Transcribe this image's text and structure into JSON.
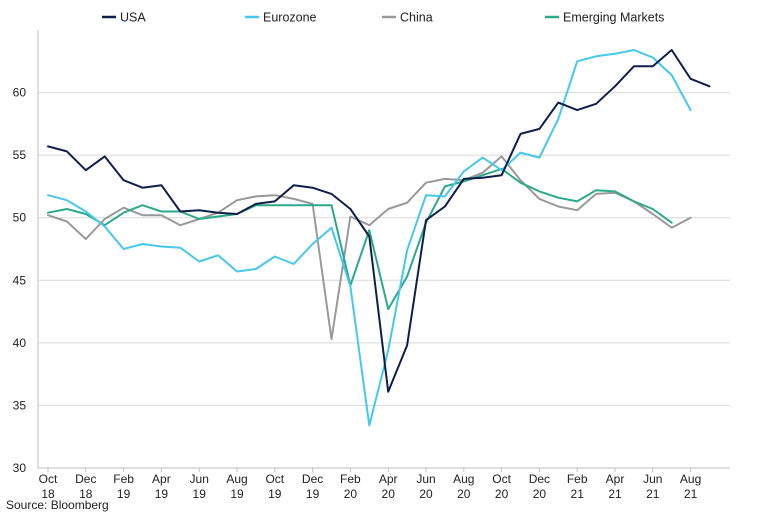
{
  "chart_data": {
    "type": "line",
    "x_ticks": [
      {
        "top": "Oct",
        "bottom": "18"
      },
      {
        "top": "Dec",
        "bottom": "18"
      },
      {
        "top": "Feb",
        "bottom": "19"
      },
      {
        "top": "Apr",
        "bottom": "19"
      },
      {
        "top": "Jun",
        "bottom": "19"
      },
      {
        "top": "Aug",
        "bottom": "19"
      },
      {
        "top": "Oct",
        "bottom": "19"
      },
      {
        "top": "Dec",
        "bottom": "19"
      },
      {
        "top": "Feb",
        "bottom": "20"
      },
      {
        "top": "Apr",
        "bottom": "20"
      },
      {
        "top": "Jun",
        "bottom": "20"
      },
      {
        "top": "Aug",
        "bottom": "20"
      },
      {
        "top": "Oct",
        "bottom": "20"
      },
      {
        "top": "Dec",
        "bottom": "20"
      },
      {
        "top": "Feb",
        "bottom": "21"
      },
      {
        "top": "Apr",
        "bottom": "21"
      },
      {
        "top": "Jun",
        "bottom": "21"
      },
      {
        "top": "Aug",
        "bottom": "21"
      }
    ],
    "ylim": [
      30,
      65
    ],
    "y_ticks": [
      30,
      35,
      40,
      45,
      50,
      55,
      60
    ],
    "legend_position": "top",
    "series": [
      {
        "name": "USA",
        "color": "#0f1f4b",
        "values": [
          55.7,
          55.3,
          53.8,
          54.9,
          53.0,
          52.4,
          52.6,
          50.5,
          50.6,
          50.4,
          50.3,
          51.1,
          51.3,
          52.6,
          52.4,
          51.9,
          50.7,
          48.5,
          36.1,
          39.8,
          49.8,
          50.9,
          53.1,
          53.2,
          53.4,
          56.7,
          57.1,
          59.2,
          58.6,
          59.1,
          60.5,
          62.1,
          62.1,
          63.4,
          61.1,
          60.5
        ]
      },
      {
        "name": "Eurozone",
        "color": "#45c8ec",
        "values": [
          51.8,
          51.4,
          50.5,
          49.3,
          47.5,
          47.9,
          47.7,
          47.6,
          46.5,
          47.0,
          45.7,
          45.9,
          46.9,
          46.3,
          47.9,
          49.2,
          44.5,
          33.4,
          39.4,
          47.4,
          51.8,
          51.7,
          53.7,
          54.8,
          53.8,
          55.2,
          54.8,
          57.9,
          62.5,
          62.9,
          63.1,
          63.4,
          62.8,
          61.4,
          58.6,
          null
        ]
      },
      {
        "name": "China",
        "color": "#999999",
        "values": [
          50.2,
          49.7,
          48.3,
          49.9,
          50.8,
          50.2,
          50.2,
          49.4,
          49.9,
          50.4,
          51.4,
          51.7,
          51.8,
          51.5,
          51.1,
          40.3,
          50.1,
          49.4,
          50.7,
          51.2,
          52.8,
          53.1,
          53.0,
          53.6,
          54.9,
          53.0,
          51.5,
          50.9,
          50.6,
          51.9,
          52.0,
          51.3,
          50.3,
          49.2,
          50.0,
          null
        ]
      },
      {
        "name": "Emerging Markets",
        "color": "#2aaa8a",
        "values": [
          50.4,
          50.7,
          50.3,
          49.4,
          50.4,
          51.0,
          50.5,
          50.5,
          49.9,
          50.1,
          50.3,
          51.0,
          51.0,
          51.0,
          51.0,
          51.0,
          44.6,
          49.0,
          42.7,
          45.3,
          49.6,
          52.5,
          52.9,
          53.4,
          53.9,
          52.8,
          52.1,
          51.6,
          51.3,
          52.2,
          52.1,
          51.3,
          50.7,
          49.6,
          null,
          null
        ]
      }
    ],
    "source": "Source: Bloomberg"
  }
}
